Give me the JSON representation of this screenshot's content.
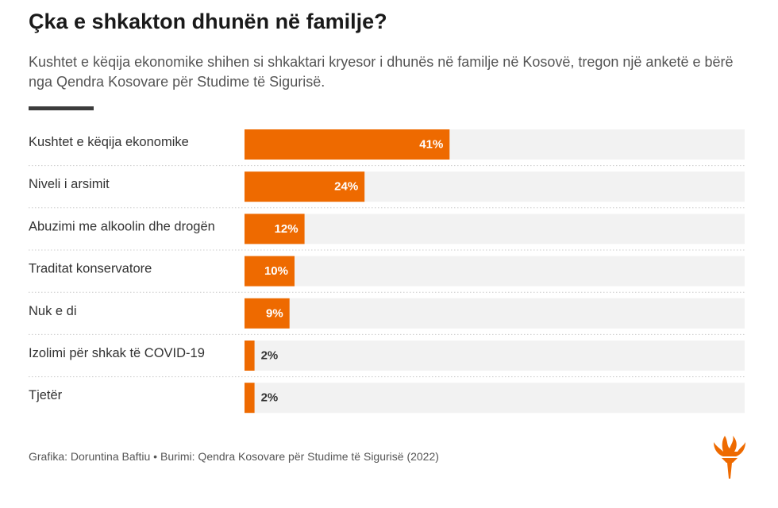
{
  "header": {
    "title": "Çka e shkakton dhunën në familje?",
    "subtitle": "Kushtet e këqija ekonomike shihen si shkaktari kryesor i dhunës në familje në Kosovë, tregon një anketë e bërë nga Qendra Kosovare për Studime të Sigurisë."
  },
  "footer": {
    "text": "Grafika: Doruntina Baftiu • Burimi: Qendra Kosovare për Studime të Sigurisë (2022)"
  },
  "logo": {
    "icon": "rfe-rl-torch-icon"
  },
  "colors": {
    "bar": "#ee6a00",
    "track": "#f2f2f2",
    "label_inside": "#ffffff",
    "label_outside": "#333333",
    "row_divider": "#cccccc"
  },
  "chart_data": {
    "type": "bar",
    "orientation": "horizontal",
    "categories": [
      "Kushtet e këqija ekonomike",
      "Niveli i arsimit",
      "Abuzimi me alkoolin dhe drogën",
      "Traditat konservatore",
      "Nuk e di",
      "Izolimi për shkak të COVID-19",
      "Tjetër"
    ],
    "values": [
      41,
      24,
      12,
      10,
      9,
      2,
      2
    ],
    "value_labels": [
      "41%",
      "24%",
      "12%",
      "10%",
      "9%",
      "2%",
      "2%"
    ],
    "unit": "%",
    "xlim": [
      0,
      100
    ],
    "grid": false,
    "legend": "none"
  }
}
